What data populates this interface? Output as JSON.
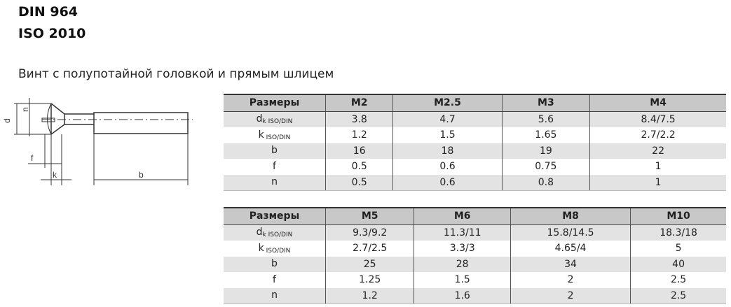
{
  "titles": [
    "DIN 964",
    "ISO 2010"
  ],
  "subtitle": "Винт с полупотайной головкой и прямым шлицем",
  "drawing": {
    "labels": {
      "dk": "d",
      "dk_sub": "k",
      "n": "n",
      "f": "f",
      "k": "k",
      "b": "b"
    }
  },
  "tables": [
    {
      "header": [
        "Размеры",
        "M2",
        "M2.5",
        "M3",
        "M4"
      ],
      "rows": [
        {
          "label": "d",
          "sub": "k ISO/DIN",
          "values": [
            "3.8",
            "4.7",
            "5.6",
            "8.4/7.5"
          ]
        },
        {
          "label": "k",
          "sub": " ISO/DIN",
          "values": [
            "1.2",
            "1.5",
            "1.65",
            "2.7/2.2"
          ]
        },
        {
          "label": "b",
          "sub": "",
          "values": [
            "16",
            "18",
            "19",
            "22"
          ]
        },
        {
          "label": "f",
          "sub": "",
          "values": [
            "0.5",
            "0.6",
            "0.75",
            "1"
          ]
        },
        {
          "label": "n",
          "sub": "",
          "values": [
            "0.5",
            "0.6",
            "0.8",
            "1"
          ]
        }
      ]
    },
    {
      "header": [
        "Размеры",
        "M5",
        "M6",
        "M8",
        "M10"
      ],
      "rows": [
        {
          "label": "d",
          "sub": "k ISO/DIN",
          "values": [
            "9.3/9.2",
            "11.3/11",
            "15.8/14.5",
            "18.3/18"
          ]
        },
        {
          "label": "k",
          "sub": " ISO/DIN",
          "values": [
            "2.7/2.5",
            "3.3/3",
            "4.65/4",
            "5"
          ]
        },
        {
          "label": "b",
          "sub": "",
          "values": [
            "25",
            "28",
            "34",
            "40"
          ]
        },
        {
          "label": "f",
          "sub": "",
          "values": [
            "1.25",
            "1.5",
            "2",
            "2.5"
          ]
        },
        {
          "label": "n",
          "sub": "",
          "values": [
            "1.2",
            "1.6",
            "2",
            "2.5"
          ]
        }
      ]
    }
  ]
}
